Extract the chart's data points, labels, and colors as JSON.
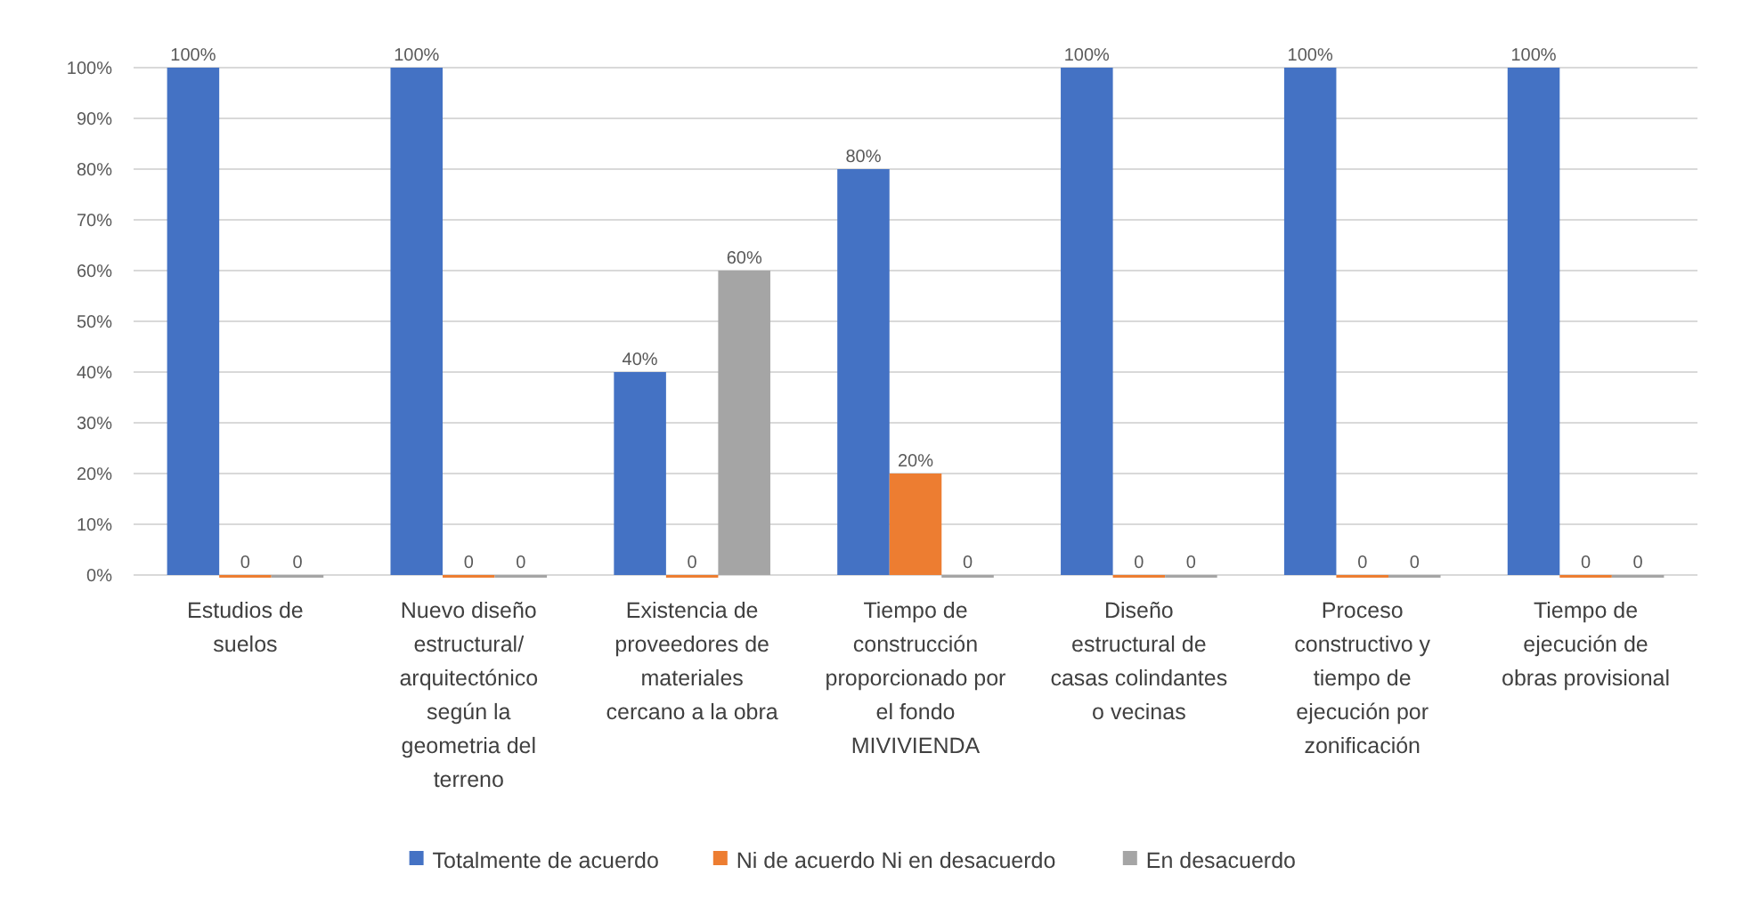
{
  "chart_data": {
    "type": "bar",
    "categories": [
      "Estudios de suelos",
      "Nuevo diseño estructural/ arquitectónico según la geometria del terreno",
      "Existencia de proveedores de materiales cercano a la obra",
      "Tiempo de construcción proporcionado por el fondo MIVIVIENDA",
      "Diseño estructural de casas colindantes o vecinas",
      "Proceso constructivo y tiempo de ejecución por zonificación",
      "Tiempo de ejecución de obras provisional"
    ],
    "series": [
      {
        "name": "Totalmente de acuerdo",
        "color": "#4472c4",
        "values": [
          100,
          100,
          40,
          80,
          100,
          100,
          100
        ],
        "value_labels": [
          "100%",
          "100%",
          "40%",
          "80%",
          "100%",
          "100%",
          "100%"
        ]
      },
      {
        "name": "Ni de acuerdo Ni en desacuerdo",
        "color": "#ed7d31",
        "values": [
          0,
          0,
          0,
          20,
          0,
          0,
          0
        ],
        "value_labels": [
          "0",
          "0",
          "0",
          "20%",
          "0",
          "0",
          "0"
        ]
      },
      {
        "name": "En desacuerdo",
        "color": "#a5a5a5",
        "values": [
          0,
          0,
          60,
          0,
          0,
          0,
          0
        ],
        "value_labels": [
          "0",
          "0",
          "60%",
          "0",
          "0",
          "0",
          "0"
        ]
      }
    ],
    "ylim": [
      0,
      100
    ],
    "yticks": [
      {
        "value": 0,
        "label": "0%"
      },
      {
        "value": 10,
        "label": "10%"
      },
      {
        "value": 20,
        "label": "20%"
      },
      {
        "value": 30,
        "label": "30%"
      },
      {
        "value": 40,
        "label": "40%"
      },
      {
        "value": 50,
        "label": "50%"
      },
      {
        "value": 60,
        "label": "60%"
      },
      {
        "value": 70,
        "label": "70%"
      },
      {
        "value": 80,
        "label": "80%"
      },
      {
        "value": 90,
        "label": "90%"
      },
      {
        "value": 100,
        "label": "100%"
      }
    ],
    "grid": "y",
    "legend": "bottom"
  }
}
